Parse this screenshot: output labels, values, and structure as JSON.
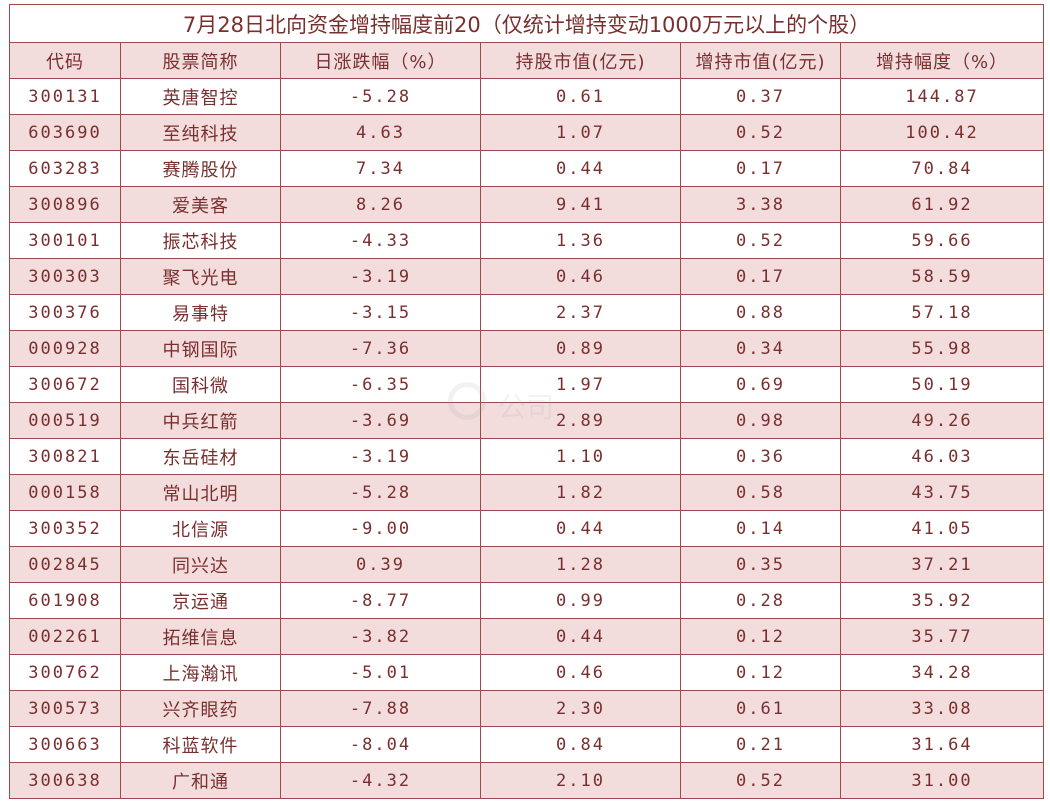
{
  "title": "7月28日北向资金增持幅度前20（仅统计增持变动1000万元以上的个股）",
  "headers": [
    "代码",
    "股票简称",
    "日涨跌幅（%）",
    "持股市值(亿元)",
    "增持市值(亿元)",
    "增持幅度（%）"
  ],
  "watermark": "公司",
  "colors": {
    "accent": "#7a2f2f",
    "border": "#9e4a4a",
    "stripe": "#f2dcdc"
  },
  "rows": [
    [
      "300131",
      "英唐智控",
      "-5.28",
      "0.61",
      "0.37",
      "144.87"
    ],
    [
      "603690",
      "至纯科技",
      "4.63",
      "1.07",
      "0.52",
      "100.42"
    ],
    [
      "603283",
      "赛腾股份",
      "7.34",
      "0.44",
      "0.17",
      "70.84"
    ],
    [
      "300896",
      "爱美客",
      "8.26",
      "9.41",
      "3.38",
      "61.92"
    ],
    [
      "300101",
      "振芯科技",
      "-4.33",
      "1.36",
      "0.52",
      "59.66"
    ],
    [
      "300303",
      "聚飞光电",
      "-3.19",
      "0.46",
      "0.17",
      "58.59"
    ],
    [
      "300376",
      "易事特",
      "-3.15",
      "2.37",
      "0.88",
      "57.18"
    ],
    [
      "000928",
      "中钢国际",
      "-7.36",
      "0.89",
      "0.34",
      "55.98"
    ],
    [
      "300672",
      "国科微",
      "-6.35",
      "1.97",
      "0.69",
      "50.19"
    ],
    [
      "000519",
      "中兵红箭",
      "-3.69",
      "2.89",
      "0.98",
      "49.26"
    ],
    [
      "300821",
      "东岳硅材",
      "-3.19",
      "1.10",
      "0.36",
      "46.03"
    ],
    [
      "000158",
      "常山北明",
      "-5.28",
      "1.82",
      "0.58",
      "43.75"
    ],
    [
      "300352",
      "北信源",
      "-9.00",
      "0.44",
      "0.14",
      "41.05"
    ],
    [
      "002845",
      "同兴达",
      "0.39",
      "1.28",
      "0.35",
      "37.21"
    ],
    [
      "601908",
      "京运通",
      "-8.77",
      "0.99",
      "0.28",
      "35.92"
    ],
    [
      "002261",
      "拓维信息",
      "-3.82",
      "0.44",
      "0.12",
      "35.77"
    ],
    [
      "300762",
      "上海瀚讯",
      "-5.01",
      "0.46",
      "0.12",
      "34.28"
    ],
    [
      "300573",
      "兴齐眼药",
      "-7.88",
      "2.30",
      "0.61",
      "33.08"
    ],
    [
      "300663",
      "科蓝软件",
      "-8.04",
      "0.84",
      "0.21",
      "31.64"
    ],
    [
      "300638",
      "广和通",
      "-4.32",
      "2.10",
      "0.52",
      "31.00"
    ]
  ]
}
